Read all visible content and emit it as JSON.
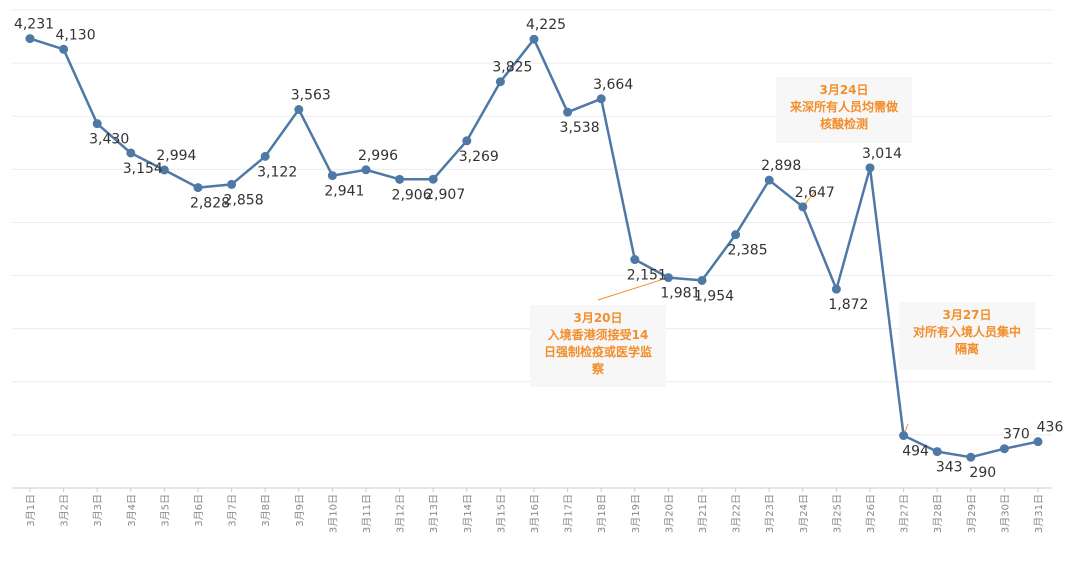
{
  "chart_data": {
    "type": "line",
    "title": "",
    "xlabel": "",
    "ylabel": "",
    "categories": [
      "3月1日",
      "3月2日",
      "3月3日",
      "3月4日",
      "3月5日",
      "3月6日",
      "3月7日",
      "3月8日",
      "3月9日",
      "3月10日",
      "3月11日",
      "3月12日",
      "3月13日",
      "3月14日",
      "3月15日",
      "3月16日",
      "3月17日",
      "3月18日",
      "3月19日",
      "3月20日",
      "3月21日",
      "3月22日",
      "3月23日",
      "3月24日",
      "3月25日",
      "3月26日",
      "3月27日",
      "3月28日",
      "3月29日",
      "3月30日",
      "3月31日"
    ],
    "values": [
      4231,
      4130,
      3430,
      3154,
      2994,
      2828,
      2858,
      3122,
      3563,
      2941,
      2996,
      2906,
      2907,
      3269,
      3825,
      4225,
      3538,
      3664,
      2151,
      1981,
      1954,
      2385,
      2898,
      2647,
      1872,
      3014,
      494,
      343,
      290,
      370,
      436
    ],
    "value_labels": [
      "4,231",
      "4,130",
      "3,430",
      "3,154",
      "2,994",
      "2,828",
      "2,858",
      "3,122",
      "3,563",
      "2,941",
      "2,996",
      "2,906",
      "2,907",
      "3,269",
      "3,825",
      "4,225",
      "3,538",
      "3,664",
      "2,151",
      "1,981",
      "1,954",
      "2,385",
      "2,898",
      "2,647",
      "1,872",
      "3,014",
      "494",
      "343",
      "290",
      "370",
      "436"
    ],
    "ylim": [
      0,
      4500
    ],
    "grid": true,
    "legend": "none",
    "line_color": "#4e79a7",
    "annotation_color": "#f28e2b",
    "annotations": [
      {
        "target": "3月20日",
        "lines": [
          "3月20日",
          "入境香港须接受14",
          "日强制检疫或医学监",
          "察"
        ]
      },
      {
        "target": "3月24日",
        "lines": [
          "3月24日",
          "来深所有人员均需做",
          "核酸检测"
        ]
      },
      {
        "target": "3月27日",
        "lines": [
          "3月27日",
          "对所有入境人员集中",
          "隔离"
        ]
      }
    ]
  }
}
